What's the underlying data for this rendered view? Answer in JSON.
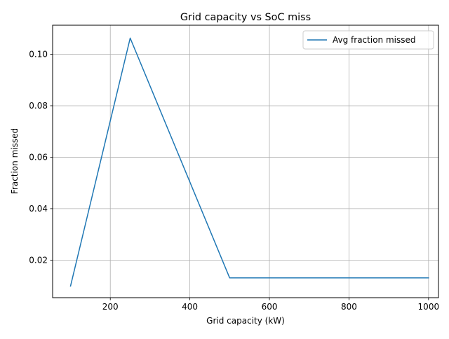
{
  "chart_data": {
    "type": "line",
    "title": "Grid capacity vs SoC miss",
    "xlabel": "Grid capacity (kW)",
    "ylabel": "Fraction missed",
    "xlim": [
      55,
      1025
    ],
    "ylim": [
      0.0054,
      0.1113
    ],
    "xticks": [
      200,
      400,
      600,
      800,
      1000
    ],
    "yticks": [
      0.02,
      0.04,
      0.06,
      0.08,
      0.1
    ],
    "xtick_labels": [
      "200",
      "400",
      "600",
      "800",
      "1000"
    ],
    "ytick_labels": [
      "0.02",
      "0.04",
      "0.06",
      "0.08",
      "0.10"
    ],
    "grid": true,
    "legend_position": "upper-right",
    "series": [
      {
        "name": "Avg fraction missed",
        "color": "#1f77b4",
        "x": [
          100,
          250,
          500,
          750,
          1000
        ],
        "y": [
          0.0099,
          0.1063,
          0.0131,
          0.0131,
          0.0131
        ]
      }
    ]
  }
}
